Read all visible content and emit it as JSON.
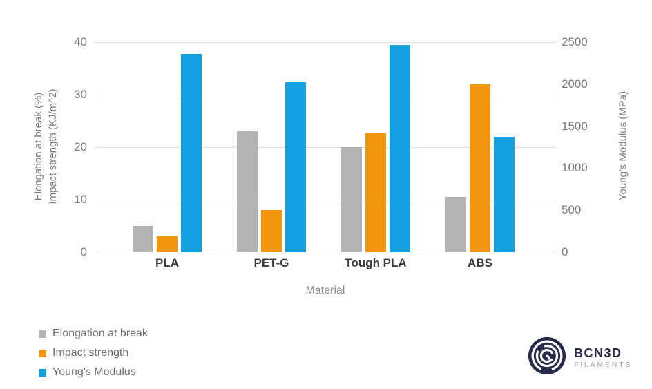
{
  "chart_data": {
    "type": "bar",
    "categories": [
      "PLA",
      "PET-G",
      "Tough PLA",
      "ABS"
    ],
    "series": [
      {
        "name": "Elongation at break",
        "axis": "left",
        "color": "#b3b3b3",
        "values": [
          5,
          23,
          20,
          10.5
        ]
      },
      {
        "name": "Impact strength",
        "axis": "left",
        "color": "#f2960d",
        "values": [
          3,
          8,
          22.7,
          32
        ]
      },
      {
        "name": "Young's Modulus",
        "axis": "right",
        "color": "#149fe0",
        "values": [
          2360,
          2020,
          2470,
          1370
        ]
      }
    ],
    "xlabel": "Material",
    "left_axis": {
      "label_line1": "Elongation at break (%)",
      "label_line2": "Impact strength (KJ/m^2)",
      "ticks": [
        0,
        10,
        20,
        30,
        40
      ],
      "max": 40
    },
    "right_axis": {
      "label": "Young's Modulus (MPa)",
      "ticks": [
        0,
        500,
        1000,
        1500,
        2000,
        2500
      ],
      "max": 2500
    },
    "grid": "horizontal",
    "legend_position": "bottom-left"
  },
  "branding": {
    "name": "BCN3D",
    "sub": "FILAMENTS",
    "color": "#272c4a"
  }
}
